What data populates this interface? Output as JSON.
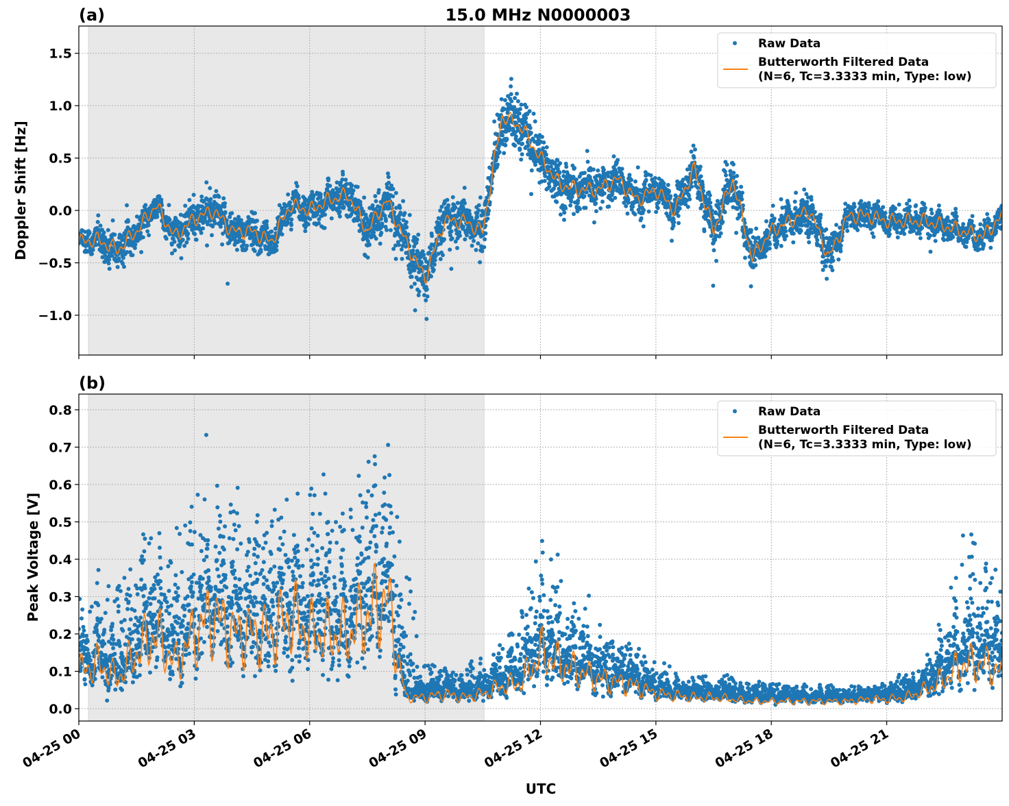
{
  "chart_data": [
    {
      "type": "scatter",
      "panel_label": "(a)",
      "title": "15.0 MHz N0000003",
      "xlabel": "",
      "ylabel": "Doppler Shift [Hz]",
      "date": "04-25",
      "xlim": [
        "00:00",
        "24:00"
      ],
      "ylim": [
        -1.38,
        1.76
      ],
      "yticks": [
        -1.0,
        -0.5,
        0.0,
        0.5,
        1.0,
        1.5
      ],
      "ytick_labels": [
        "−1.0",
        "−0.5",
        "0.0",
        "0.5",
        "1.0",
        "1.5"
      ],
      "grid": true,
      "legend_placement": "top-right",
      "shaded_interval": [
        "00:15",
        "10:32"
      ],
      "x": [
        "00:00",
        "00:30",
        "01:00",
        "01:30",
        "02:00",
        "02:30",
        "03:00",
        "03:30",
        "04:00",
        "04:30",
        "05:00",
        "05:30",
        "06:00",
        "06:30",
        "07:00",
        "07:30",
        "08:00",
        "08:30",
        "09:00",
        "09:30",
        "10:00",
        "10:30",
        "11:00",
        "11:30",
        "12:00",
        "12:30",
        "13:00",
        "13:30",
        "14:00",
        "14:30",
        "15:00",
        "15:30",
        "16:00",
        "16:30",
        "17:00",
        "17:30",
        "18:00",
        "18:30",
        "19:00",
        "19:30",
        "20:00",
        "20:30",
        "21:00",
        "21:30",
        "22:00",
        "22:30",
        "23:00",
        "23:30",
        "24:00"
      ],
      "series": [
        {
          "name": "Butterworth Filtered Data\n(N=6, Tc=3.3333 min, Type: low)",
          "style": "line",
          "color": "#ff7f0e",
          "values": [
            -0.3,
            -0.28,
            -0.38,
            -0.2,
            0.05,
            -0.25,
            -0.08,
            0.0,
            -0.2,
            -0.2,
            -0.3,
            0.05,
            0.0,
            0.1,
            0.15,
            -0.2,
            0.1,
            -0.3,
            -0.65,
            -0.1,
            -0.1,
            -0.2,
            0.9,
            0.8,
            0.5,
            0.25,
            0.2,
            0.2,
            0.3,
            0.1,
            0.2,
            0.0,
            0.4,
            -0.2,
            0.3,
            -0.45,
            -0.2,
            -0.1,
            0.0,
            -0.45,
            -0.05,
            -0.05,
            -0.1,
            -0.1,
            -0.1,
            -0.15,
            -0.2,
            -0.25,
            -0.05
          ]
        },
        {
          "name": "Raw Data",
          "style": "points",
          "color": "#1f77b4",
          "spread_hourly": [
            0.1,
            0.2,
            0.1,
            0.2,
            0.2,
            0.15,
            0.15,
            0.2,
            0.25,
            0.25,
            0.2,
            0.3,
            0.25,
            0.2,
            0.2,
            0.15,
            0.2,
            0.25,
            0.15,
            0.2,
            0.12,
            0.12,
            0.12,
            0.12,
            0.12
          ]
        }
      ],
      "legend": [
        "Raw Data",
        "Butterworth Filtered Data",
        "(N=6, Tc=3.3333 min, Type: low)"
      ]
    },
    {
      "type": "scatter",
      "panel_label": "(b)",
      "title": "",
      "xlabel": "UTC",
      "ylabel": "Peak Voltage [V]",
      "date": "04-25",
      "xlim": [
        "00:00",
        "24:00"
      ],
      "ylim": [
        -0.033,
        0.842
      ],
      "yticks": [
        0.0,
        0.1,
        0.2,
        0.3,
        0.4,
        0.5,
        0.6,
        0.7,
        0.8
      ],
      "ytick_labels": [
        "0.0",
        "0.1",
        "0.2",
        "0.3",
        "0.4",
        "0.5",
        "0.6",
        "0.7",
        "0.8"
      ],
      "xticks": [
        "00:00",
        "03:00",
        "06:00",
        "09:00",
        "12:00",
        "15:00",
        "18:00",
        "21:00"
      ],
      "xtick_labels": [
        "04-25 00",
        "04-25 03",
        "04-25 06",
        "04-25 09",
        "04-25 12",
        "04-25 15",
        "04-25 18",
        "04-25 21"
      ],
      "grid": true,
      "legend_placement": "top-right",
      "shaded_interval": [
        "00:15",
        "10:32"
      ],
      "x": [
        "00:00",
        "00:30",
        "01:00",
        "01:30",
        "02:00",
        "02:30",
        "03:00",
        "03:30",
        "04:00",
        "04:30",
        "05:00",
        "05:30",
        "06:00",
        "06:30",
        "07:00",
        "07:30",
        "08:00",
        "08:30",
        "09:00",
        "09:30",
        "10:00",
        "10:30",
        "11:00",
        "11:30",
        "12:00",
        "12:30",
        "13:00",
        "13:30",
        "14:00",
        "14:30",
        "15:00",
        "15:30",
        "16:00",
        "16:30",
        "17:00",
        "17:30",
        "18:00",
        "18:30",
        "19:00",
        "19:30",
        "20:00",
        "20:30",
        "21:00",
        "21:30",
        "22:00",
        "22:30",
        "23:00",
        "23:30",
        "24:00"
      ],
      "series": [
        {
          "name": "Butterworth Filtered Data\n(N=6, Tc=3.3333 min, Type: low)",
          "style": "line",
          "color": "#ff7f0e",
          "values": [
            0.1,
            0.12,
            0.08,
            0.15,
            0.2,
            0.12,
            0.2,
            0.25,
            0.2,
            0.2,
            0.2,
            0.25,
            0.2,
            0.2,
            0.2,
            0.25,
            0.3,
            0.03,
            0.03,
            0.04,
            0.03,
            0.04,
            0.06,
            0.07,
            0.15,
            0.12,
            0.1,
            0.08,
            0.07,
            0.06,
            0.04,
            0.035,
            0.03,
            0.03,
            0.025,
            0.02,
            0.02,
            0.02,
            0.02,
            0.02,
            0.02,
            0.025,
            0.025,
            0.03,
            0.05,
            0.08,
            0.12,
            0.12,
            0.1
          ]
        },
        {
          "name": "Raw Data",
          "style": "points",
          "color": "#1f77b4",
          "max_hourly": [
            0.25,
            0.35,
            0.5,
            0.6,
            0.55,
            0.5,
            0.6,
            0.55,
            0.7,
            0.1,
            0.1,
            0.15,
            0.4,
            0.25,
            0.18,
            0.12,
            0.08,
            0.07,
            0.06,
            0.05,
            0.05,
            0.06,
            0.1,
            0.5,
            0.3
          ]
        }
      ],
      "legend": [
        "Raw Data",
        "Butterworth Filtered Data",
        "(N=6, Tc=3.3333 min, Type: low)"
      ]
    }
  ]
}
